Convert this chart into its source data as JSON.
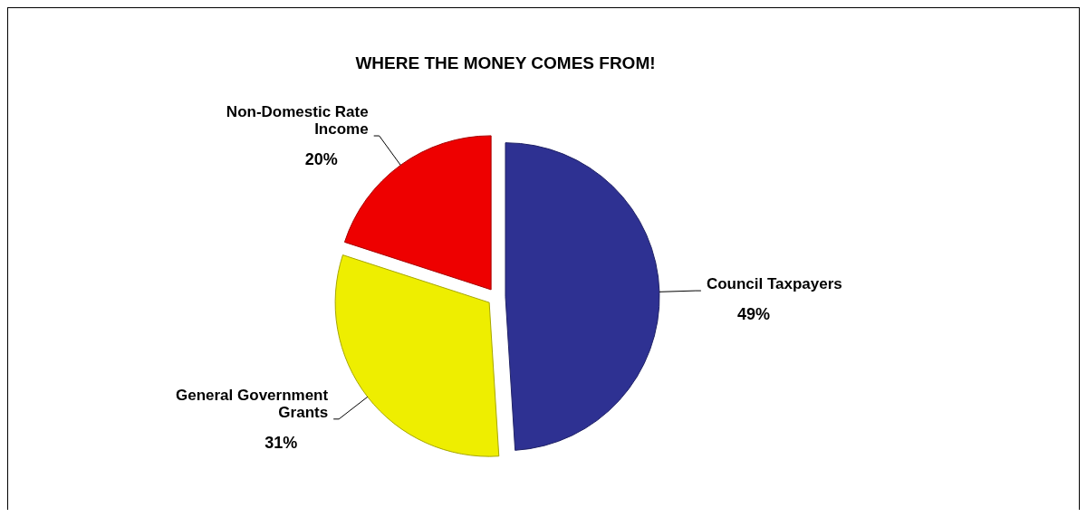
{
  "chart_data": {
    "type": "pie",
    "title": "WHERE THE MONEY COMES FROM!",
    "categories": [
      "Council Taxpayers",
      "General Government Grants",
      "Non-Domestic Rate Income"
    ],
    "values": [
      49,
      31,
      20
    ],
    "colors": [
      "#2e3192",
      "#eeee00",
      "#ee0000"
    ],
    "value_labels": [
      "49%",
      "31%",
      "20%"
    ]
  }
}
